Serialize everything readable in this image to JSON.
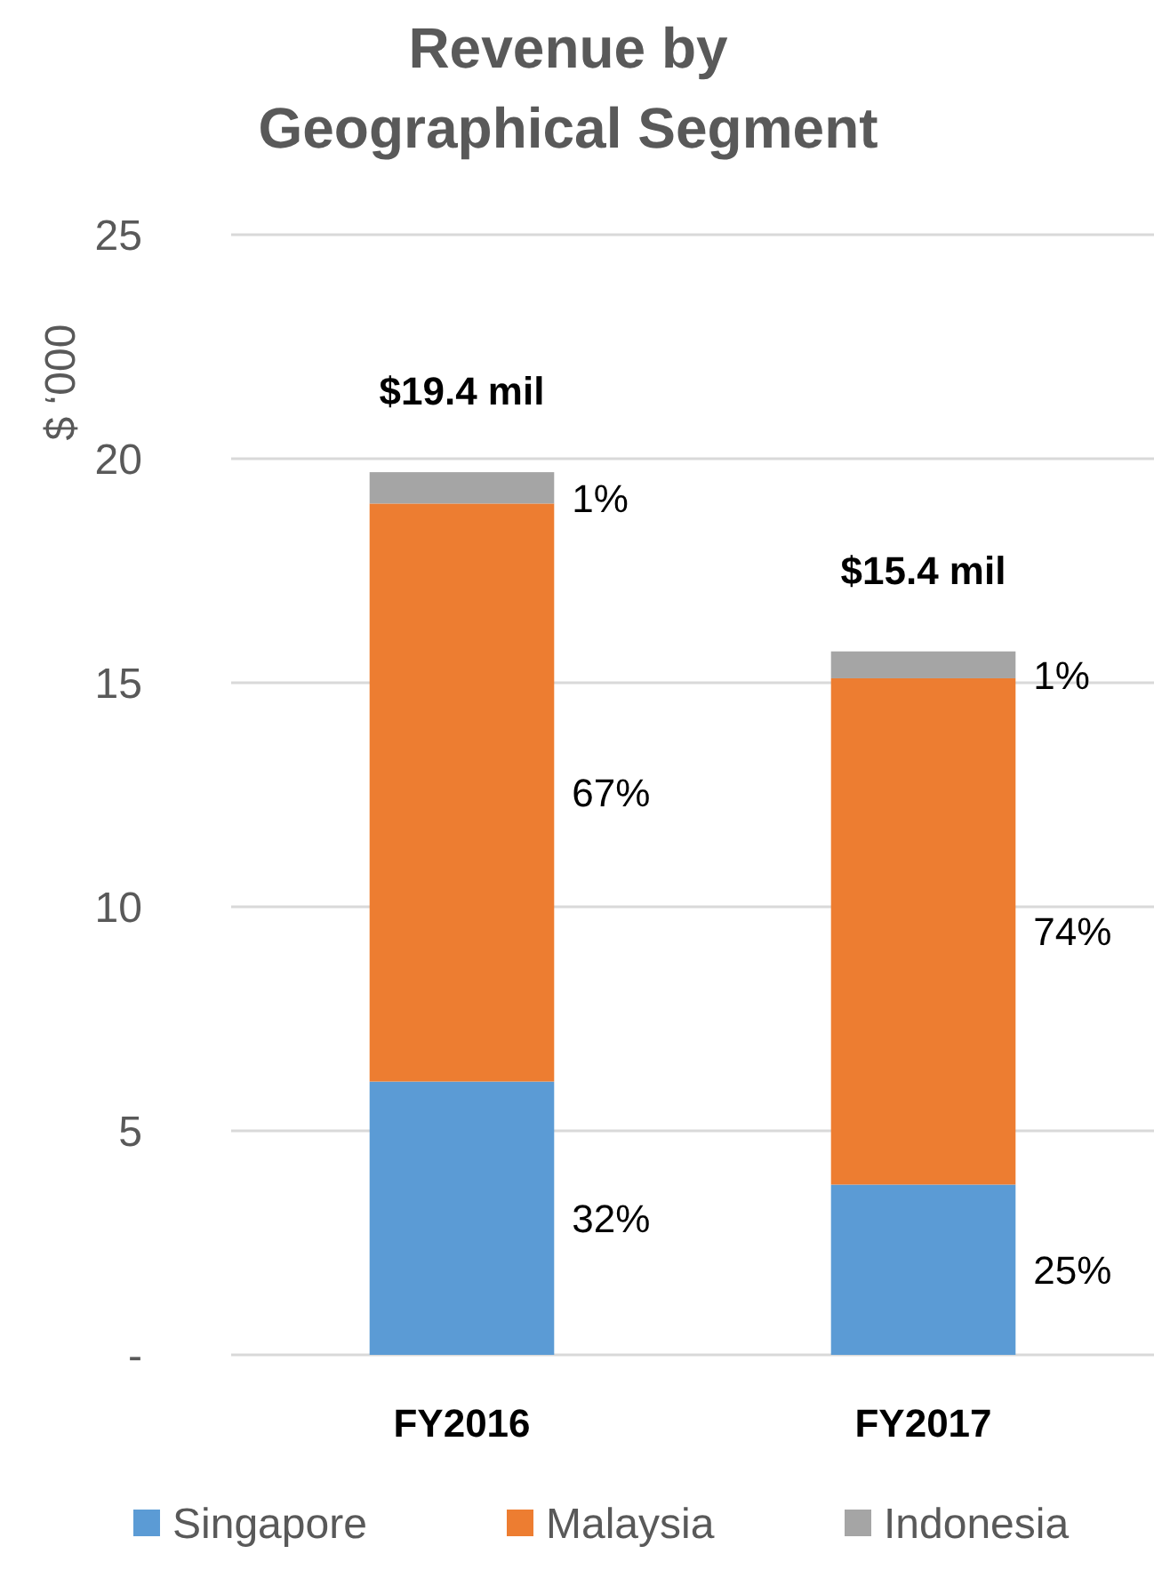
{
  "chart_data": {
    "type": "bar",
    "title": "Revenue by Geographical Segment",
    "ylabel": "$ ‘000",
    "categories": [
      "FY2016",
      "FY2017"
    ],
    "stacked": true,
    "series": [
      {
        "name": "Singapore",
        "color": "#5b9bd5",
        "values": [
          6.1,
          3.8
        ]
      },
      {
        "name": "Malaysia",
        "color": "#ed7d31",
        "values": [
          12.9,
          11.3
        ]
      },
      {
        "name": "Indonesia",
        "color": "#a5a5a5",
        "values": [
          0.7,
          0.6
        ]
      }
    ],
    "annotations": [
      {
        "text": "$19.4 mil",
        "x": "FY2016",
        "y": 19.7
      },
      {
        "text": "$15.4 mil",
        "x": "FY2017",
        "y": 15.7
      },
      "32%",
      "25%",
      "67%",
      "74%",
      "1%",
      "1%"
    ],
    "ylim": [
      0,
      25
    ],
    "yticks": [
      {
        "value": 0,
        "label": "-"
      },
      5,
      10,
      15,
      20,
      25
    ],
    "grid": "y",
    "legend": "bottom"
  }
}
